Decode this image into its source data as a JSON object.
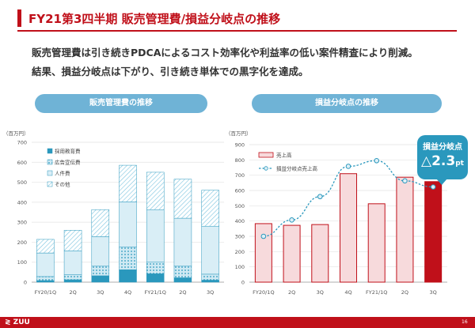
{
  "header": {
    "title": "FY21第3四半期 販売管理費/損益分岐点の推移"
  },
  "body": {
    "line1": "販売管理費は引き続きPDCAによるコスト効率化や利益率の低い案件精査により削減。",
    "line2": "結果、損益分岐点は下がり、引き続き単体での黒字化を達成。"
  },
  "pills": {
    "left": "販売管理費の推移",
    "right": "損益分岐点の推移"
  },
  "callout": {
    "label": "損益分岐点",
    "value": "△2.3",
    "unit": "pt"
  },
  "footer": {
    "logo": "≷ ZUU",
    "page": "16"
  },
  "colors": {
    "brand": "#c0101a",
    "pill": "#6fb3d6",
    "callout": "#2a98bd"
  },
  "chart_data": [
    {
      "type": "bar",
      "stacked": true,
      "unit_label": "（百万円）",
      "categories": [
        "FY20/1Q",
        "2Q",
        "3Q",
        "4Q",
        "FY21/1Q",
        "2Q",
        "3Q"
      ],
      "yticks": [
        "0",
        "100",
        "200",
        "300",
        "400",
        "500",
        "600",
        "700"
      ],
      "ylim": [
        0,
        700
      ],
      "legend_position": "top-left",
      "series": [
        {
          "name": "採用教育費",
          "color": "#2a98bd",
          "pattern": "solid",
          "values": [
            8,
            12,
            32,
            62,
            42,
            22,
            10
          ]
        },
        {
          "name": "広告宣伝費",
          "color": "#7cc4e0",
          "pattern": "dots",
          "values": [
            20,
            25,
            48,
            115,
            58,
            58,
            30
          ]
        },
        {
          "name": "人件費",
          "color": "#d9eef6",
          "pattern": "light",
          "values": [
            118,
            120,
            148,
            225,
            263,
            240,
            240
          ]
        },
        {
          "name": "その他",
          "color": "#e8f5fa",
          "pattern": "hatch",
          "values": [
            68,
            103,
            135,
            183,
            187,
            195,
            180
          ]
        }
      ]
    },
    {
      "type": "bar",
      "unit_label": "（百万円）",
      "categories": [
        "FY20/1Q",
        "2Q",
        "3Q",
        "4Q",
        "FY21/1Q",
        "2Q",
        "3Q"
      ],
      "yticks": [
        "0",
        "100",
        "200",
        "300",
        "400",
        "500",
        "600",
        "700",
        "800",
        "900"
      ],
      "ylim": [
        0,
        900
      ],
      "legend_position": "top-left",
      "series": [
        {
          "name": "売上高",
          "type": "bar",
          "color": "#f7dadc",
          "border": "#c0101a",
          "values": [
            383,
            372,
            377,
            710,
            513,
            687,
            658
          ],
          "highlight_last_color": "#c0101a"
        },
        {
          "name": "損益分岐点売上高",
          "type": "line",
          "color": "#2a98bd",
          "values": [
            300,
            407,
            560,
            758,
            795,
            663,
            623
          ]
        }
      ]
    }
  ]
}
